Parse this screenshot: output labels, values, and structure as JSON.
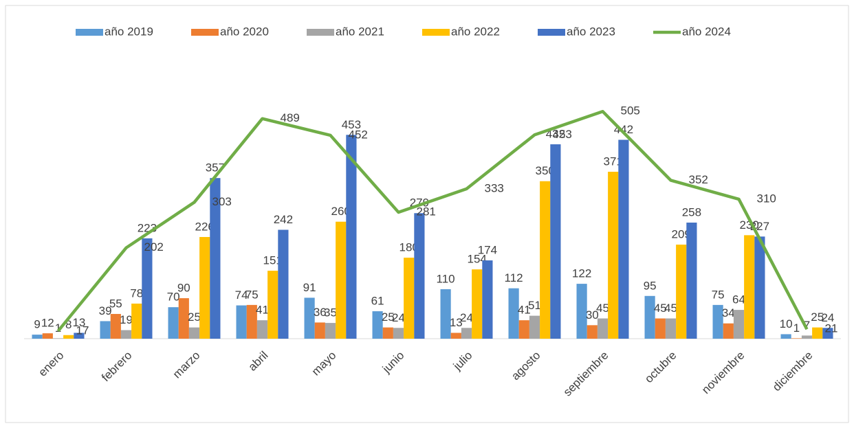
{
  "chart_data": {
    "type": "bar",
    "categories": [
      "enero",
      "febrero",
      "marzo",
      "abril",
      "mayo",
      "junio",
      "julio",
      "agosto",
      "septiembre",
      "octubre",
      "noviembre",
      "diciembre"
    ],
    "series": [
      {
        "name": "año 2019",
        "color": "#5b9bd5",
        "values": [
          9,
          39,
          70,
          74,
          91,
          61,
          110,
          112,
          122,
          95,
          75,
          10
        ]
      },
      {
        "name": "año 2020",
        "color": "#ed7d31",
        "values": [
          12,
          55,
          90,
          75,
          36,
          25,
          13,
          41,
          30,
          45,
          34,
          1
        ]
      },
      {
        "name": "año 2021",
        "color": "#a5a5a5",
        "values": [
          1,
          19,
          25,
          41,
          35,
          24,
          24,
          51,
          45,
          45,
          64,
          7
        ]
      },
      {
        "name": "año 2022",
        "color": "#ffc000",
        "values": [
          8,
          78,
          226,
          151,
          260,
          180,
          154,
          350,
          371,
          209,
          230,
          25
        ]
      },
      {
        "name": "año 2023",
        "color": "#4472c4",
        "values": [
          13,
          223,
          357,
          242,
          453,
          279,
          174,
          432,
          442,
          258,
          227,
          24
        ]
      },
      {
        "name": "año 2024",
        "color": "#70ad47",
        "type": "line",
        "values": [
          17,
          202,
          303,
          489,
          452,
          281,
          333,
          453,
          505,
          352,
          310,
          21
        ]
      }
    ],
    "ylim": [
      0,
      600
    ],
    "legend": "top"
  }
}
